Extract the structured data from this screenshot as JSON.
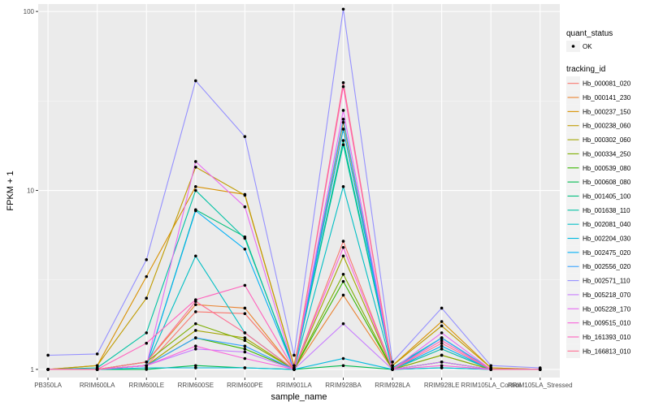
{
  "chart_data": {
    "type": "line",
    "xlabel": "sample_name",
    "ylabel": "FPKM + 1",
    "y_scale": "log10",
    "ylim": [
      0.9,
      110
    ],
    "y_ticks": [
      1,
      10,
      100
    ],
    "y_tick_labels": [
      "1",
      "10",
      "100"
    ],
    "grid": true,
    "legend_position": "right",
    "categories": [
      "PB350LA",
      "RRIM600LA",
      "RRIM600LE",
      "RRIM600SE",
      "RRIM600PE",
      "RRIM901LA",
      "RRIM928BA",
      "RRIM928LA",
      "RRIM928LE",
      "RRIM105LA_Control",
      "RRIM105LA_Stressed"
    ],
    "legends": [
      {
        "title": "quant_status",
        "entries": [
          {
            "label": "OK"
          }
        ]
      },
      {
        "title": "tracking_id"
      }
    ],
    "series": [
      {
        "name": "Hb_000081_020",
        "color": "#F8766D",
        "values": [
          1.0,
          1.0,
          1.05,
          2.1,
          2.05,
          1.0,
          5.2,
          1.0,
          1.1,
          1.0,
          1.0
        ]
      },
      {
        "name": "Hb_000141_230",
        "color": "#EA8331",
        "values": [
          1.0,
          1.0,
          1.1,
          2.3,
          2.2,
          1.0,
          2.6,
          1.0,
          1.2,
          1.0,
          1.0
        ]
      },
      {
        "name": "Hb_000237_150",
        "color": "#D89000",
        "values": [
          1.0,
          1.05,
          3.3,
          10.5,
          9.5,
          1.05,
          24.0,
          1.05,
          1.85,
          1.02,
          1.0
        ]
      },
      {
        "name": "Hb_000238_060",
        "color": "#C09B00",
        "values": [
          1.0,
          1.05,
          2.5,
          13.5,
          9.4,
          1.05,
          22.0,
          1.05,
          1.75,
          1.02,
          1.0
        ]
      },
      {
        "name": "Hb_000302_060",
        "color": "#A3A500",
        "values": [
          1.0,
          1.0,
          1.05,
          1.65,
          1.5,
          1.0,
          4.3,
          1.0,
          1.3,
          1.0,
          1.0
        ]
      },
      {
        "name": "Hb_000334_250",
        "color": "#7CAE00",
        "values": [
          1.0,
          1.0,
          1.1,
          1.8,
          1.45,
          1.0,
          3.4,
          1.0,
          1.2,
          1.0,
          1.0
        ]
      },
      {
        "name": "Hb_000539_080",
        "color": "#39B600",
        "values": [
          1.0,
          1.0,
          1.05,
          1.5,
          1.3,
          1.0,
          3.1,
          1.0,
          1.1,
          1.0,
          1.0
        ]
      },
      {
        "name": "Hb_000608_080",
        "color": "#00BB4E",
        "values": [
          1.0,
          1.0,
          1.0,
          1.05,
          1.02,
          1.0,
          1.05,
          1.0,
          1.02,
          1.0,
          1.0
        ]
      },
      {
        "name": "Hb_001405_100",
        "color": "#00BF7D",
        "values": [
          1.0,
          1.0,
          1.05,
          7.8,
          5.5,
          1.0,
          19.0,
          1.0,
          1.5,
          1.0,
          1.0
        ]
      },
      {
        "name": "Hb_001638_110",
        "color": "#00C1A3",
        "values": [
          1.0,
          1.02,
          1.6,
          10.0,
          5.4,
          1.02,
          18.0,
          1.02,
          1.5,
          1.0,
          1.0
        ]
      },
      {
        "name": "Hb_002081_040",
        "color": "#00BFC4",
        "values": [
          1.0,
          1.0,
          1.05,
          4.3,
          1.6,
          1.0,
          10.5,
          1.0,
          1.3,
          1.0,
          1.0
        ]
      },
      {
        "name": "Hb_002204_030",
        "color": "#00BAE0",
        "values": [
          1.0,
          1.0,
          1.02,
          1.02,
          1.02,
          1.0,
          1.15,
          1.0,
          1.02,
          1.0,
          1.0
        ]
      },
      {
        "name": "Hb_002475_020",
        "color": "#00B0F6",
        "values": [
          1.0,
          1.0,
          1.05,
          7.7,
          4.7,
          1.0,
          22.0,
          1.0,
          1.35,
          1.0,
          1.0
        ]
      },
      {
        "name": "Hb_002556_020",
        "color": "#35A2FF",
        "values": [
          1.0,
          1.0,
          1.05,
          1.5,
          1.35,
          1.0,
          25.0,
          1.0,
          1.5,
          1.0,
          1.0
        ]
      },
      {
        "name": "Hb_002571_110",
        "color": "#9590FF",
        "values": [
          1.2,
          1.22,
          4.1,
          41.0,
          20.0,
          1.2,
          103.0,
          1.1,
          2.2,
          1.05,
          1.02
        ]
      },
      {
        "name": "Hb_005218_070",
        "color": "#C77CFF",
        "values": [
          1.0,
          1.0,
          1.05,
          1.3,
          1.25,
          1.0,
          1.8,
          1.0,
          1.1,
          1.0,
          1.0
        ]
      },
      {
        "name": "Hb_005228_170",
        "color": "#E76BF3",
        "values": [
          1.0,
          1.0,
          1.05,
          14.5,
          8.1,
          1.0,
          28.0,
          1.0,
          1.6,
          1.0,
          1.0
        ]
      },
      {
        "name": "Hb_009515_010",
        "color": "#FA62DB",
        "values": [
          1.0,
          1.0,
          1.05,
          1.35,
          1.15,
          1.0,
          4.8,
          1.0,
          1.05,
          1.0,
          1.0
        ]
      },
      {
        "name": "Hb_161393_010",
        "color": "#FF62BC",
        "values": [
          1.0,
          1.0,
          1.4,
          2.45,
          2.95,
          1.0,
          38.0,
          1.0,
          1.45,
          1.0,
          1.0
        ]
      },
      {
        "name": "Hb_166813_010",
        "color": "#FF6C91",
        "values": [
          1.0,
          1.0,
          1.1,
          2.4,
          1.6,
          1.0,
          40.0,
          1.0,
          1.4,
          1.0,
          1.0
        ]
      }
    ]
  }
}
